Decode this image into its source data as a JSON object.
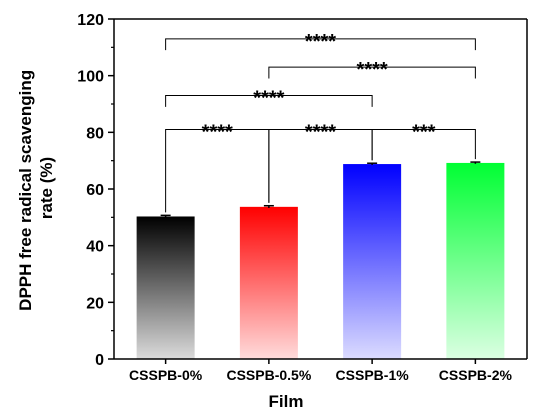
{
  "chart_data": {
    "type": "bar",
    "xlabel": "Film",
    "ylabel_lines": [
      "DPPH free radical scavenging",
      "rate (%)"
    ],
    "ylim": [
      0,
      120
    ],
    "yticks": [
      "0",
      "20",
      "40",
      "60",
      "80",
      "100",
      "120"
    ],
    "categories": [
      "CSSPB-0%",
      "CSSPB-0.5%",
      "CSSPB-1%",
      "CSSPB-2%"
    ],
    "values": [
      50.3,
      53.7,
      68.8,
      69.2
    ],
    "errors": [
      0.4,
      0.4,
      0.3,
      0.3
    ],
    "bar_colors": [
      "#000000",
      "#ff0000",
      "#0000ff",
      "#00ff33"
    ],
    "grid": false,
    "significance": [
      {
        "from": 0,
        "to": 1,
        "label": "****",
        "y": 81
      },
      {
        "from": 1,
        "to": 2,
        "label": "****",
        "y": 81
      },
      {
        "from": 2,
        "to": 3,
        "label": "***",
        "y": 81
      },
      {
        "from": 0,
        "to": 2,
        "label": "****",
        "y": 93
      },
      {
        "from": 1,
        "to": 3,
        "label": "****",
        "y": 103
      },
      {
        "from": 0,
        "to": 3,
        "label": "****",
        "y": 113
      }
    ]
  }
}
